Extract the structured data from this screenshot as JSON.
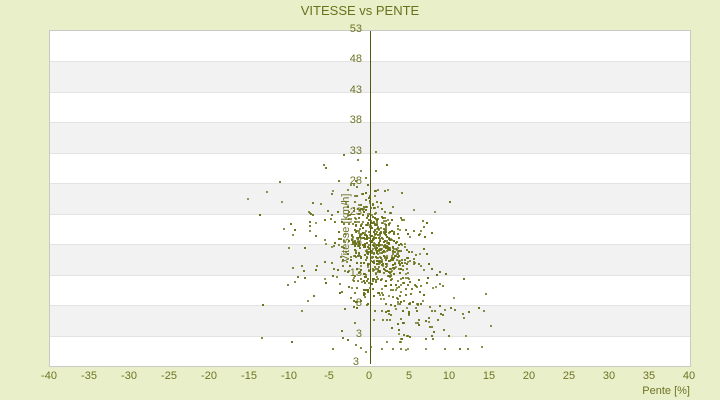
{
  "title": "VITESSE vs PENTE",
  "colors": {
    "background": "#e9efc9",
    "title_text": "#68721c",
    "tick_text": "#6e7324",
    "point": "#687016",
    "zero_line": "#4f5a0e",
    "band_white": "#ffffff",
    "band_gray": "#f2f2f2",
    "grid_line": "#e3e3e3",
    "plot_border": "#c9c9c9"
  },
  "chart_data": {
    "type": "scatter",
    "title": "VITESSE vs PENTE",
    "xlabel": "Pente [%]",
    "ylabel": "Vitesse [km/h]",
    "xlim": [
      -40,
      40
    ],
    "ylim": [
      -2,
      53
    ],
    "x_ticks": [
      -40,
      -35,
      -30,
      -25,
      -20,
      -15,
      -10,
      -5,
      0,
      5,
      10,
      15,
      20,
      25,
      30,
      35,
      40
    ],
    "y_ticks": [
      53,
      48,
      43,
      38,
      33,
      28,
      23,
      18,
      13,
      8,
      3
    ],
    "y_axis_min_label": "3",
    "grid": "alternating-horizontal-bands",
    "legend": "none",
    "zero_line_x": 0,
    "point_shape": "2px-square",
    "n_points_estimate": 850,
    "distribution": {
      "seed": 42,
      "clusters": [
        {
          "n": 430,
          "y_mean": 18,
          "y_sd": 4.2,
          "y_min": 6,
          "y_max": 30,
          "x_base": 0.9,
          "x_tilt": 0.18,
          "tilt_ref": 18,
          "x_sd": 1.8,
          "x_sd_grow": 0.06,
          "x_min": -9,
          "x_max": 11
        },
        {
          "n": 230,
          "y_mean": 15,
          "y_sd": 6.0,
          "y_min": 3,
          "y_max": 31,
          "x_base": 0.6,
          "x_tilt": 0.25,
          "tilt_ref": 17,
          "x_sd": 3.2,
          "x_sd_grow": 0,
          "x_min": -12,
          "x_max": 13
        },
        {
          "n": 110,
          "y_mean": 13,
          "y_sd": 7.5,
          "y_min": 0.8,
          "y_max": 32.5,
          "x_base": 0.5,
          "x_tilt": 0.28,
          "tilt_ref": 16,
          "x_sd": 5.2,
          "x_sd_grow": 0,
          "x_min": -14,
          "x_max": 14
        },
        {
          "n": 28,
          "y_mean": 6.5,
          "y_sd": 2.2,
          "y_min": 2.5,
          "y_max": 11,
          "x_base": 7.5,
          "x_tilt": 0,
          "tilt_ref": 0,
          "x_sd": 3.0,
          "x_sd_grow": 0,
          "x_min": 2,
          "x_max": 14.5
        },
        {
          "n": 14,
          "y_mean": 14,
          "y_sd": 7.0,
          "y_min": 2,
          "y_max": 27,
          "x_base": -8.5,
          "x_tilt": 0,
          "tilt_ref": 0,
          "x_sd": 2.5,
          "x_sd_grow": 0,
          "x_min": -15.5,
          "x_max": -4
        },
        {
          "n": 18,
          "y_mean": 2.5,
          "y_sd": 1.5,
          "y_min": 0.2,
          "y_max": 5,
          "x_base": 1,
          "x_tilt": 0,
          "tilt_ref": 0,
          "x_sd": 4.0,
          "x_sd_grow": 0,
          "x_min": -8,
          "x_max": 10
        }
      ]
    },
    "outlier_points": [
      [
        -15.3,
        25.4
      ],
      [
        -12.9,
        26.6
      ],
      [
        -13.8,
        22.8
      ],
      [
        -11.2,
        28.2
      ],
      [
        -3.2,
        32.6
      ],
      [
        0.8,
        33.1
      ],
      [
        -1.5,
        31.8
      ],
      [
        -5.5,
        30.5
      ],
      [
        13.6,
        7.6
      ],
      [
        14.3,
        7.1
      ],
      [
        12.4,
        6.8
      ],
      [
        15.1,
        4.6
      ],
      [
        12.0,
        2.9
      ],
      [
        -13.5,
        2.6
      ],
      [
        -9.8,
        1.9
      ],
      [
        4.5,
        0.6
      ],
      [
        -0.5,
        0.3
      ],
      [
        8.8,
        11.5
      ],
      [
        10.5,
        9.2
      ]
    ]
  }
}
